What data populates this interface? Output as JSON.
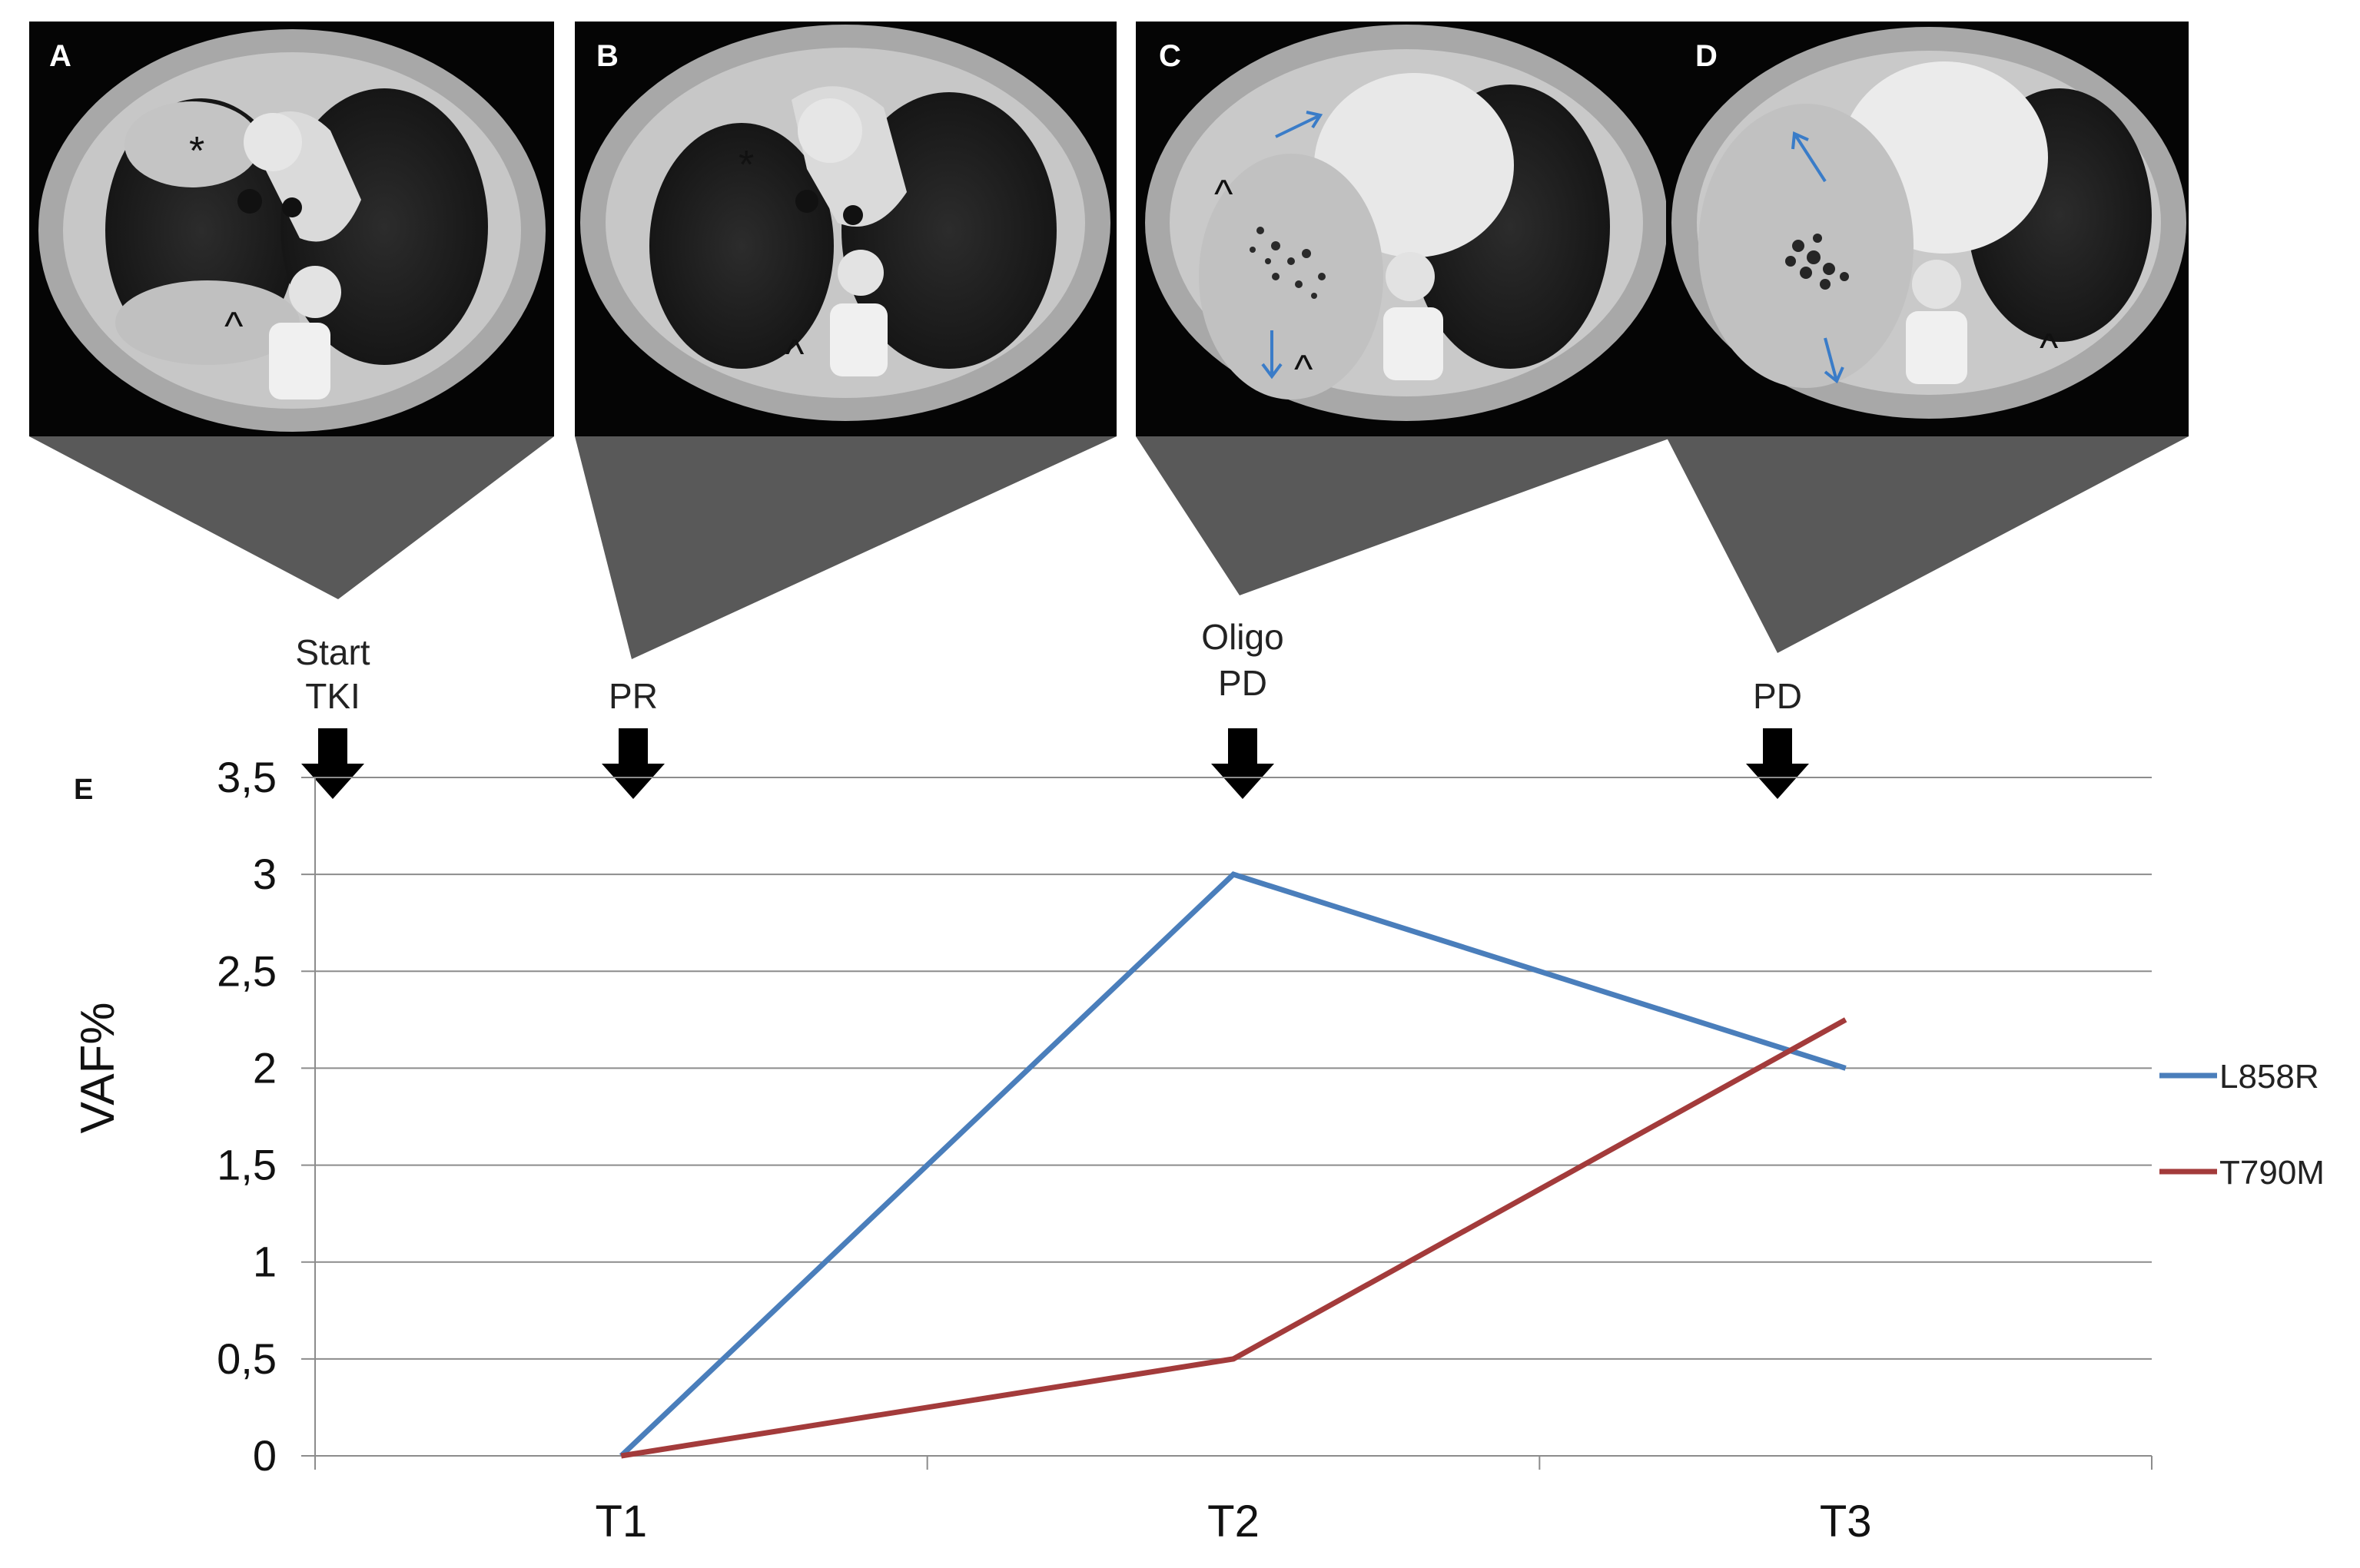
{
  "panels": [
    {
      "id": "A",
      "label": "A",
      "marks": [
        "*",
        "^"
      ],
      "arrow_color": null
    },
    {
      "id": "B",
      "label": "B",
      "marks": [
        "*",
        "^"
      ],
      "arrow_color": null
    },
    {
      "id": "C",
      "label": "C",
      "marks": [
        "^",
        "^"
      ],
      "arrow_color": "#3a7cc8"
    },
    {
      "id": "D",
      "label": "D",
      "marks": [
        "^"
      ],
      "arrow_color": "#3a7cc8"
    }
  ],
  "events": [
    {
      "lines": [
        "Start",
        "TKI"
      ]
    },
    {
      "lines": [
        "",
        "PR"
      ]
    },
    {
      "lines": [
        "Oligo",
        "PD"
      ]
    },
    {
      "lines": [
        "",
        "PD"
      ]
    }
  ],
  "chart_data": {
    "type": "line",
    "panel_label": "E",
    "categories": [
      "T1",
      "T2",
      "T3"
    ],
    "ylabel": "VAF%",
    "ylim": [
      0,
      3.5
    ],
    "y_ticks": [
      "0",
      "0,5",
      "1",
      "1,5",
      "2",
      "2,5",
      "3",
      "3,5"
    ],
    "grid": true,
    "legend_position": "right",
    "series": [
      {
        "name": "L858R",
        "color": "#4a7ebb",
        "values": [
          0,
          3,
          2
        ]
      },
      {
        "name": "T790M",
        "color": "#a33b3b",
        "values": [
          0,
          0.5,
          2.25
        ]
      }
    ]
  }
}
